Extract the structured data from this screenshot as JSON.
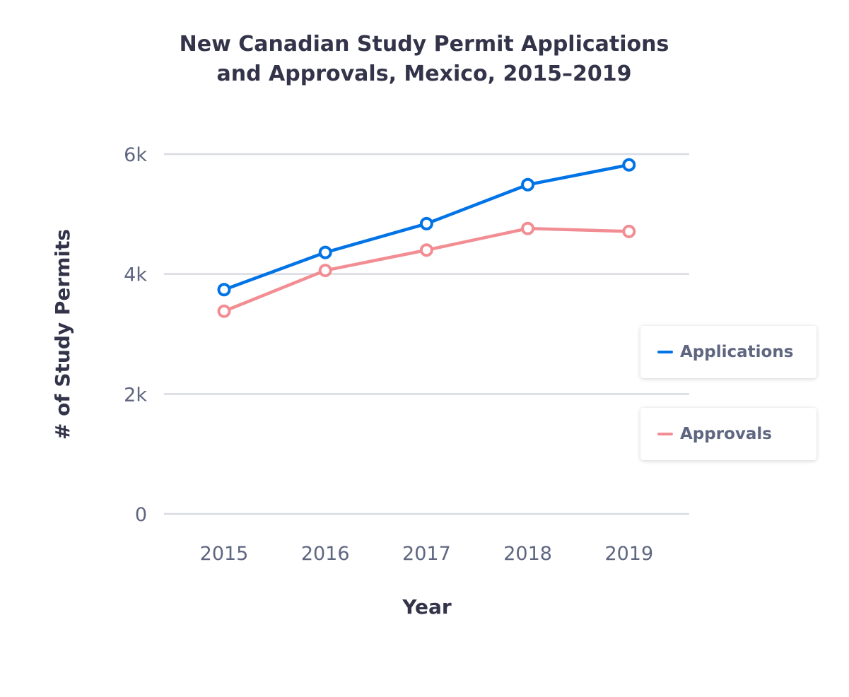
{
  "chart_data": {
    "type": "line",
    "title": [
      "New Canadian Study Permit Applications",
      "and Approvals, Mexico, 2015–2019"
    ],
    "xlabel": "Year",
    "ylabel": "# of Study Permits",
    "x": [
      "2015",
      "2016",
      "2017",
      "2018",
      "2019"
    ],
    "ylim": [
      0,
      6000
    ],
    "yticks": [
      0,
      2000,
      4000,
      6000
    ],
    "ytick_labels": [
      "0",
      "2k",
      "4k",
      "6k"
    ],
    "grid": true,
    "legend_placement": "right",
    "series": [
      {
        "name": "Applications",
        "color": "#0073e6",
        "values": [
          3740,
          4360,
          4840,
          5490,
          5820
        ]
      },
      {
        "name": "Approvals",
        "color": "#f28e93",
        "values": [
          3380,
          4060,
          4400,
          4760,
          4710
        ]
      }
    ]
  }
}
